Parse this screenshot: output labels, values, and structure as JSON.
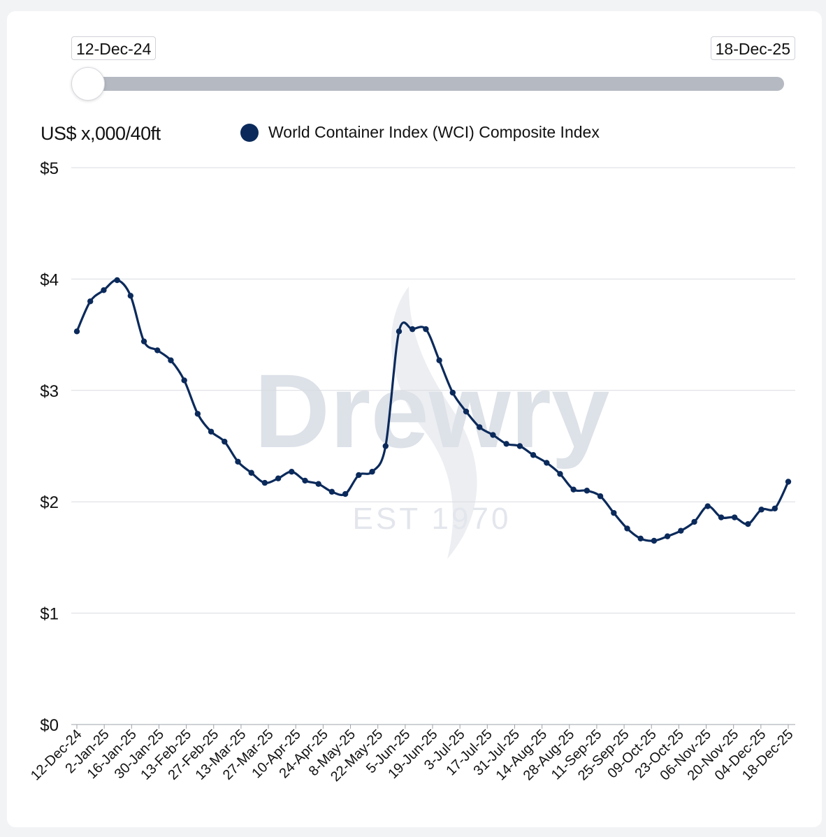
{
  "range_slider": {
    "start_label": "12-Dec-24",
    "end_label": "18-Dec-25"
  },
  "watermark": {
    "brand": "Drewry",
    "tagline": "EST 1970"
  },
  "colors": {
    "series": "#0b2a5b",
    "grid": "#d9dbe0",
    "watermark": "#dde1e8"
  },
  "chart_data": {
    "type": "line",
    "ylabel": "US$ x,000/40ft",
    "ylim": [
      0,
      5
    ],
    "y_ticks": [
      "$0",
      "$1",
      "$2",
      "$3",
      "$4",
      "$5"
    ],
    "x_tick_labels": [
      "12-Dec-24",
      "2-Jan-25",
      "16-Jan-25",
      "30-Jan-25",
      "13-Feb-25",
      "27-Feb-25",
      "13-Mar-25",
      "27-Mar-25",
      "10-Apr-25",
      "24-Apr-25",
      "8-May-25",
      "22-May-25",
      "5-Jun-25",
      "19-Jun-25",
      "3-Jul-25",
      "17-Jul-25",
      "31-Jul-25",
      "14-Aug-25",
      "28-Aug-25",
      "11-Sep-25",
      "25-Sep-25",
      "09-Oct-25",
      "23-Oct-25",
      "06-Nov-25",
      "20-Nov-25",
      "04-Dec-25",
      "18-Dec-25"
    ],
    "series": [
      {
        "name": "World Container Index (WCI) Composite Index",
        "values": [
          3.53,
          3.8,
          3.9,
          3.99,
          3.85,
          3.44,
          3.36,
          3.27,
          3.09,
          2.79,
          2.63,
          2.54,
          2.36,
          2.26,
          2.17,
          2.21,
          2.27,
          2.19,
          2.16,
          2.09,
          2.07,
          2.24,
          2.27,
          2.5,
          3.53,
          3.55,
          3.55,
          3.27,
          2.98,
          2.81,
          2.67,
          2.6,
          2.52,
          2.5,
          2.42,
          2.35,
          2.25,
          2.11,
          2.1,
          2.05,
          1.9,
          1.76,
          1.67,
          1.65,
          1.69,
          1.74,
          1.82,
          1.96,
          1.86,
          1.86,
          1.8,
          1.93,
          1.94,
          2.18
        ]
      }
    ]
  }
}
